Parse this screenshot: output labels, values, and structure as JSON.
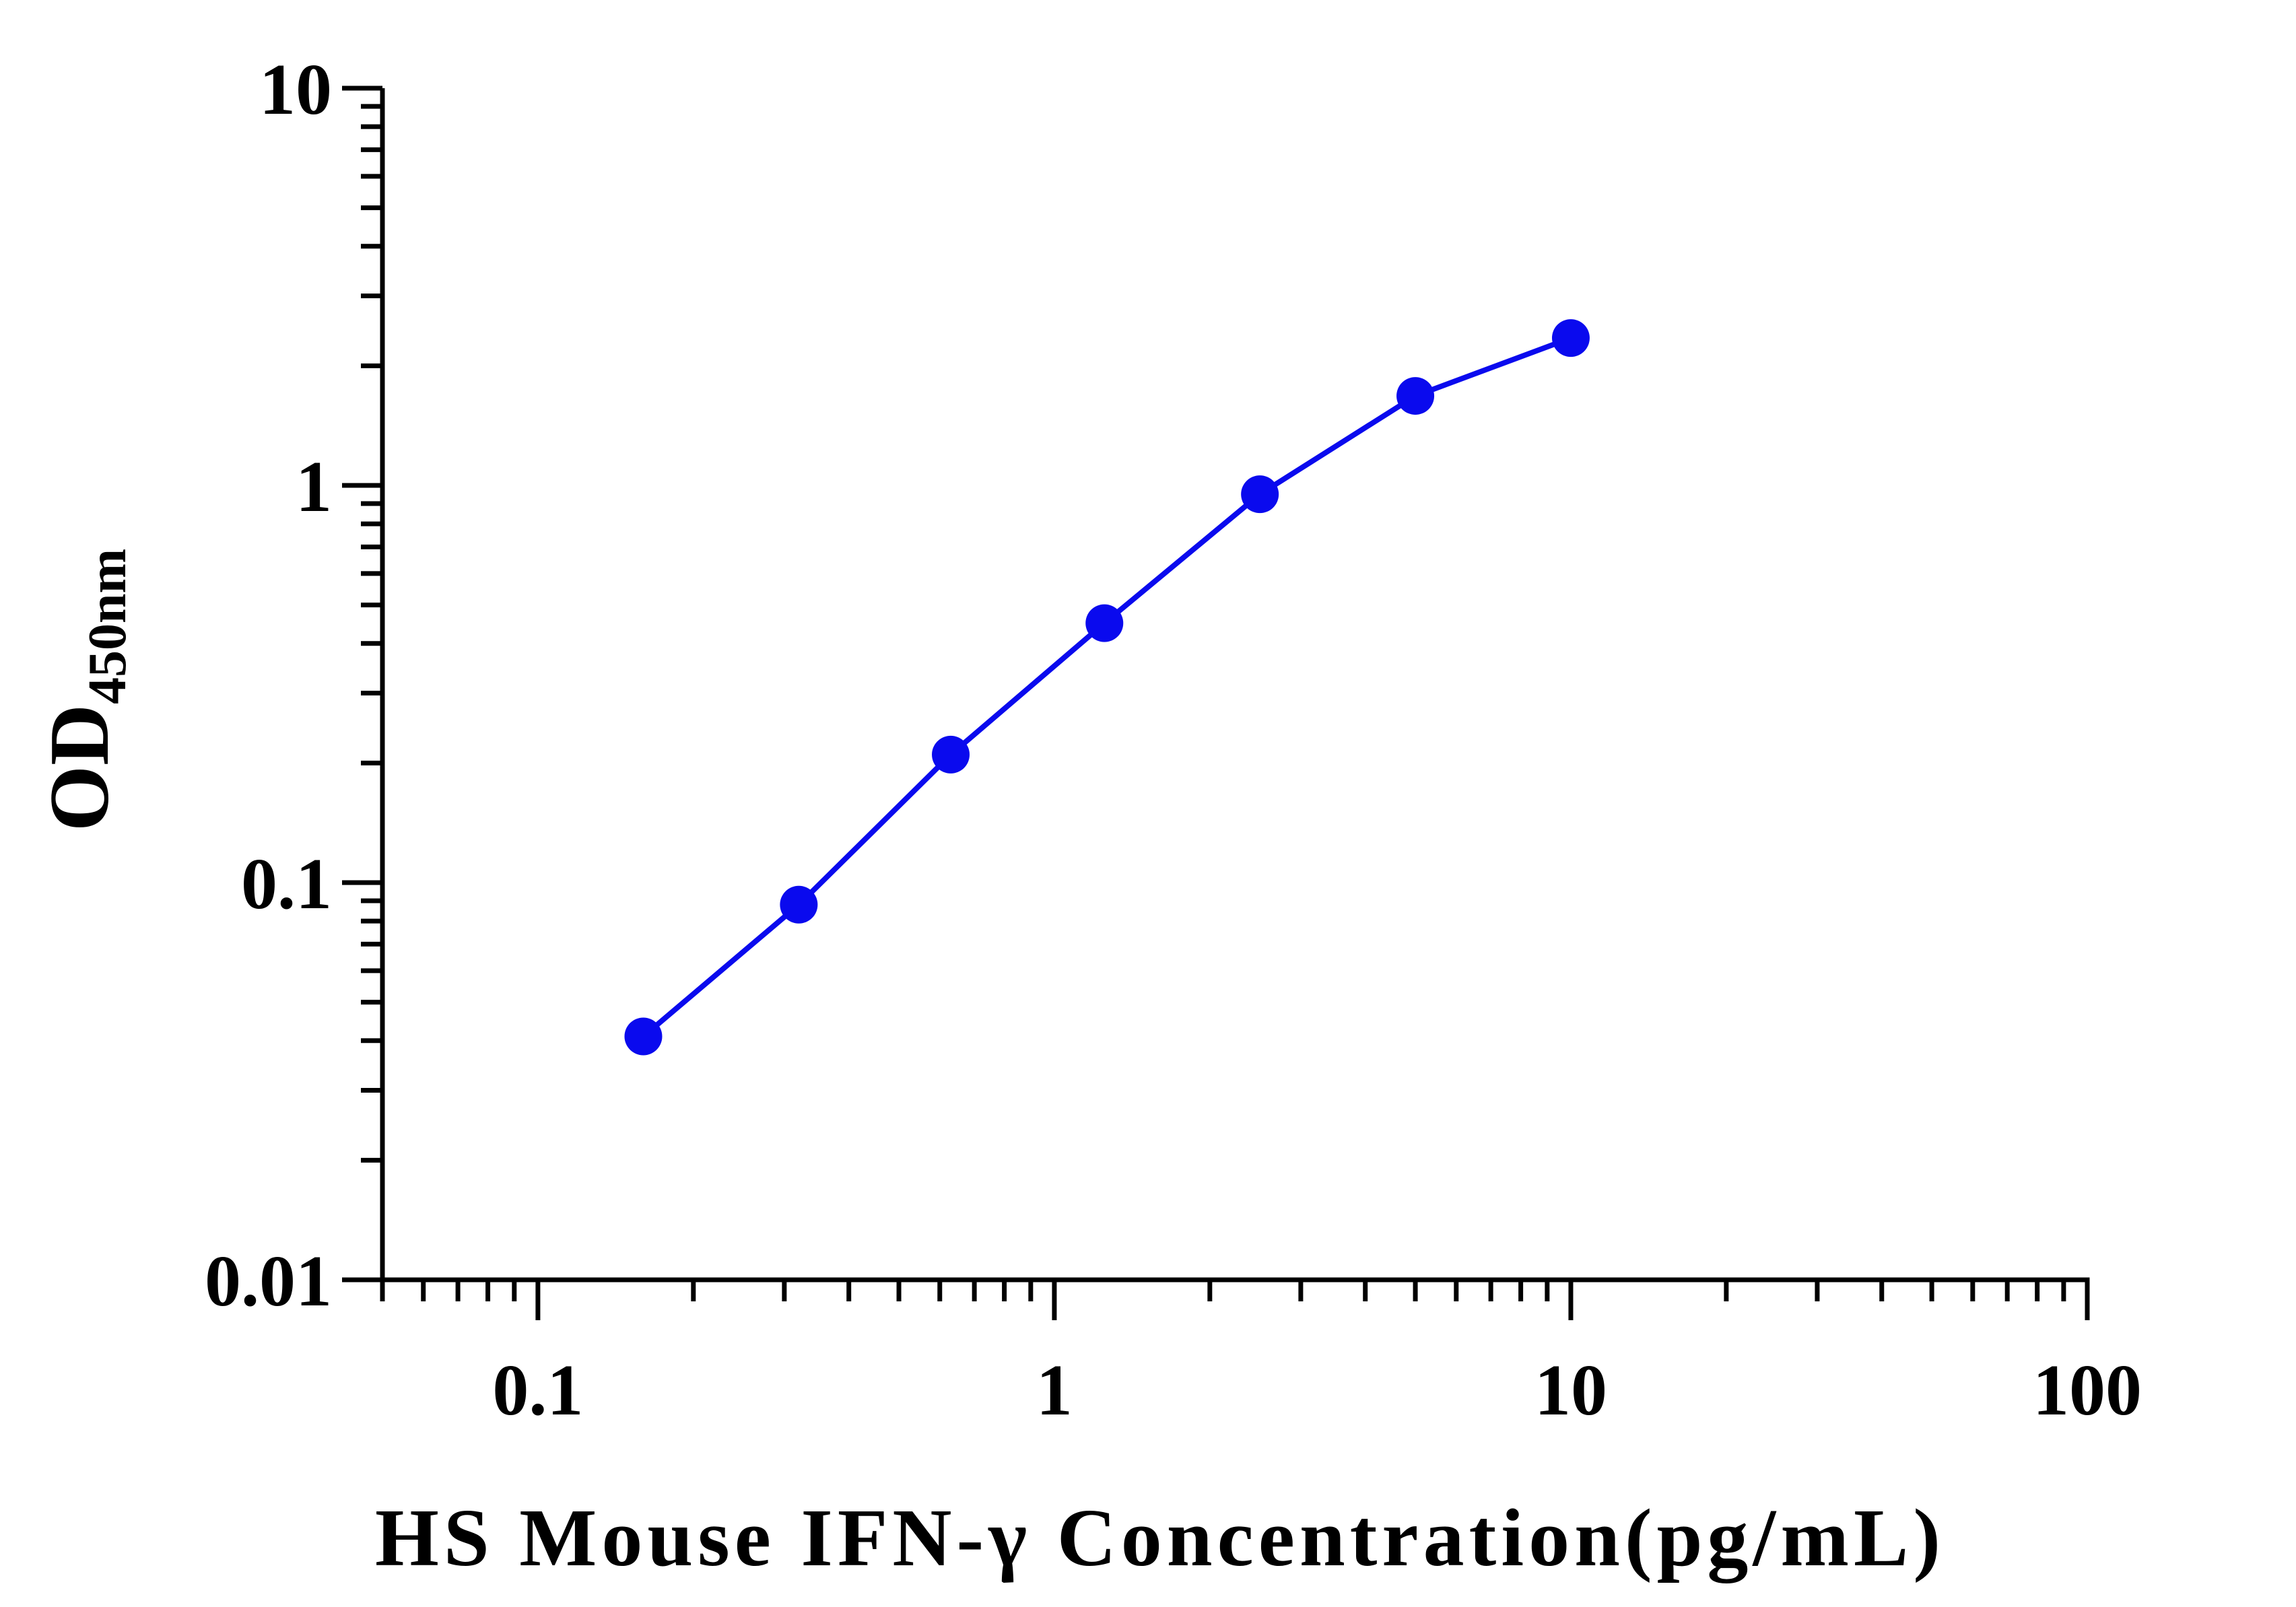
{
  "chart_data": {
    "type": "line",
    "xlabel": "HS Mouse IFN-γ Concentration(pg/mL)",
    "ylabel_main": "OD",
    "ylabel_sub": "450nm",
    "x_scale": "log",
    "y_scale": "log",
    "xlim": [
      0.05,
      100
    ],
    "ylim": [
      0.01,
      10
    ],
    "x_ticks": [
      0.1,
      1,
      10,
      100
    ],
    "x_tick_labels": [
      "0.1",
      "1",
      "10",
      "100"
    ],
    "y_ticks": [
      0.01,
      0.1,
      1,
      10
    ],
    "y_tick_labels": [
      "0.01",
      "0.1",
      "1",
      "10"
    ],
    "grid": false,
    "legend": "none",
    "series": [
      {
        "color": "#0a0aee",
        "x": [
          0.16,
          0.32,
          0.63,
          1.25,
          2.5,
          5,
          10
        ],
        "y": [
          0.041,
          0.088,
          0.21,
          0.45,
          0.95,
          1.68,
          2.35
        ]
      }
    ]
  }
}
